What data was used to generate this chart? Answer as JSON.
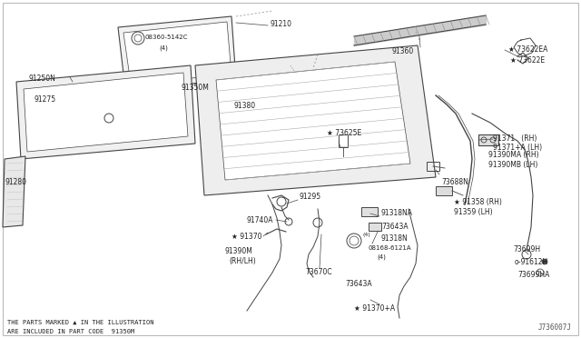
{
  "bg_color": "#ffffff",
  "line_color": "#444444",
  "text_color": "#222222",
  "footer_text1": "THE PARTS MARKED ▲ IN THE ILLUSTRATION",
  "footer_text2": "ARE INCLUDED IN PART CODE  91350M",
  "ref_code": "J736007J"
}
